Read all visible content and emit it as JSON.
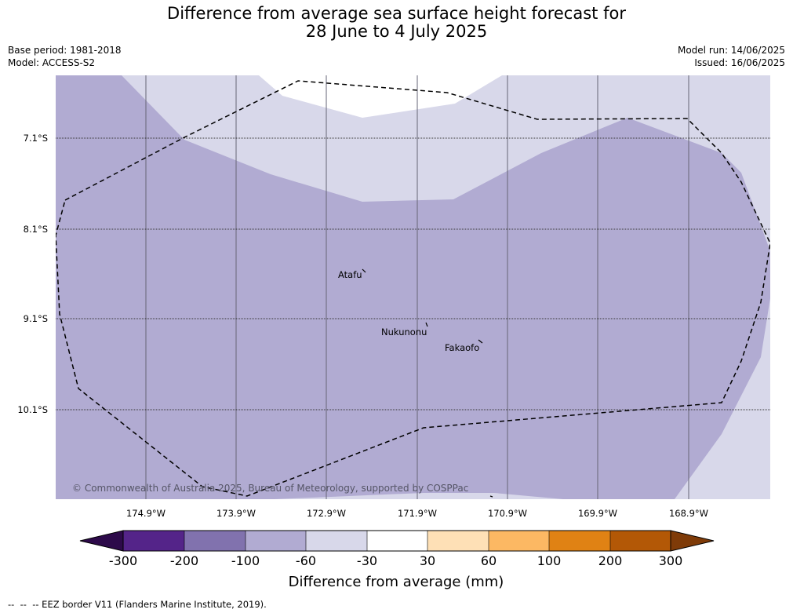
{
  "header": {
    "title_line1": "Difference from average sea surface height forecast for",
    "title_line2": "28 June to 4 July 2025",
    "base_period": "Base period: 1981-2018",
    "model": "Model: ACCESS-S2",
    "model_run": "Model run: 14/06/2025",
    "issued": "Issued: 16/06/2025"
  },
  "map": {
    "latitude_labels": [
      "7.1°S",
      "8.1°S",
      "9.1°S",
      "10.1°S"
    ],
    "longitude_labels": [
      "174.9°W",
      "173.9°W",
      "172.9°W",
      "171.9°W",
      "170.9°W",
      "169.9°W",
      "168.9°W"
    ],
    "places": [
      "Atafu",
      "Nukunonu",
      "Fakaofo"
    ],
    "copyright": "© Commonwealth of Australia 2025, Bureau of Meteorology, supported by COSPPac",
    "colors": {
      "minus_60_to_minus_30": "#d8d8ea",
      "minus_100_to_minus_60": "#b1abd2",
      "minus_30_to_30": "#ffffff"
    }
  },
  "colorbar": {
    "tick_labels": [
      "-300",
      "-200",
      "-100",
      "-60",
      "-30",
      "30",
      "60",
      "100",
      "200",
      "300"
    ],
    "label": "Difference from average (mm)",
    "colors": [
      "#2d0a4a",
      "#542489",
      "#8172ae",
      "#b1abd2",
      "#d8d8ea",
      "#ffffff",
      "#fee0b6",
      "#fcb863",
      "#e08214",
      "#b35806",
      "#7f3b08"
    ]
  },
  "footer": {
    "legend_text": "--  --  -- EEZ border V11 (Flanders Marine Institute, 2019)."
  }
}
